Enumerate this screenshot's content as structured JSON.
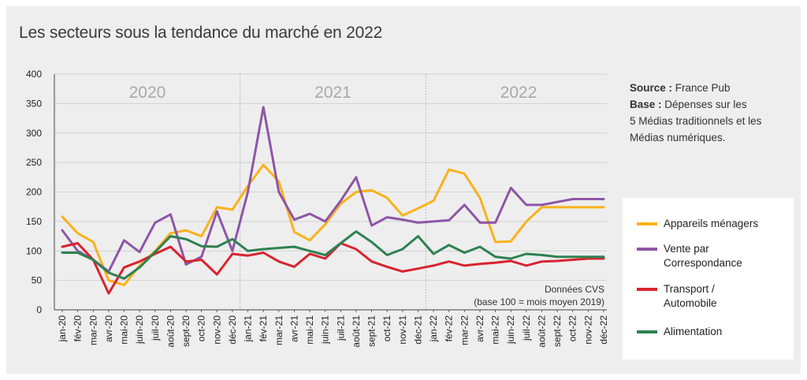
{
  "title": "Les secteurs sous la tendance du marché en 2022",
  "source": {
    "source_label": "Source :",
    "source_value": "France Pub",
    "base_label": "Base :",
    "base_line1": "Dépenses sur les",
    "base_line2": "5 Médias traditionnels et les",
    "base_line3": "Médias numériques."
  },
  "note": {
    "line1": "Données CVS",
    "line2": "(base 100 = mois moyen 2019)"
  },
  "legend": {
    "items": [
      {
        "line1": "Appareils ménagers",
        "line2": ""
      },
      {
        "line1": "Vente par",
        "line2": "Correspondance"
      },
      {
        "line1": "Transport /",
        "line2": "Automobile"
      },
      {
        "line1": "Alimentation",
        "line2": ""
      }
    ]
  },
  "chart_data": {
    "type": "line",
    "title": "Les secteurs sous la tendance du marché en 2022",
    "ylim": [
      0,
      400
    ],
    "yticks": [
      0,
      50,
      100,
      150,
      200,
      250,
      300,
      350,
      400
    ],
    "years": [
      "2020",
      "2021",
      "2022"
    ],
    "categories": [
      "jan-20",
      "fév-20",
      "mar-20",
      "avr-20",
      "mai-20",
      "juin-20",
      "juil-20",
      "août-20",
      "sept-20",
      "oct-20",
      "nov-20",
      "déc-20",
      "jan-21",
      "fév-21",
      "mar-21",
      "avr-21",
      "mai-21",
      "juin-21",
      "juil-21",
      "août-21",
      "sept-21",
      "oct-21",
      "nov-21",
      "déc-21",
      "jan-22",
      "fév-22",
      "mar-22",
      "avr-22",
      "mai-22",
      "juin-22",
      "juil-22",
      "août-22",
      "sept-22",
      "oct-22",
      "nov-22",
      "déc-22"
    ],
    "series": [
      {
        "name": "Appareils ménagers",
        "color": "#f9b21b",
        "values": [
          158,
          130,
          115,
          50,
          42,
          75,
          100,
          130,
          135,
          125,
          174,
          170,
          210,
          246,
          218,
          132,
          118,
          145,
          180,
          200,
          203,
          190,
          160,
          172,
          185,
          238,
          231,
          190,
          115,
          116,
          150,
          174,
          174,
          174,
          174,
          174
        ]
      },
      {
        "name": "Vente par Correspondance",
        "color": "#8e56a6",
        "values": [
          135,
          100,
          85,
          65,
          118,
          98,
          148,
          162,
          77,
          90,
          167,
          100,
          200,
          344,
          200,
          153,
          163,
          150,
          185,
          225,
          143,
          157,
          153,
          148,
          150,
          152,
          178,
          148,
          148,
          207,
          178,
          178,
          183,
          188,
          188,
          188
        ]
      },
      {
        "name": "Transport / Automobile",
        "color": "#d82430",
        "values": [
          107,
          113,
          85,
          28,
          72,
          82,
          95,
          107,
          82,
          85,
          60,
          95,
          92,
          97,
          82,
          73,
          95,
          87,
          113,
          103,
          82,
          73,
          65,
          70,
          75,
          82,
          75,
          78,
          80,
          83,
          75,
          82,
          83,
          85,
          87,
          87
        ]
      },
      {
        "name": "Alimentation",
        "color": "#2e8151",
        "values": [
          97,
          97,
          85,
          63,
          53,
          72,
          98,
          125,
          120,
          108,
          107,
          120,
          100,
          103,
          105,
          107,
          100,
          93,
          113,
          133,
          115,
          93,
          103,
          125,
          95,
          110,
          97,
          107,
          90,
          87,
          95,
          93,
          90,
          90,
          90,
          90
        ]
      }
    ]
  }
}
